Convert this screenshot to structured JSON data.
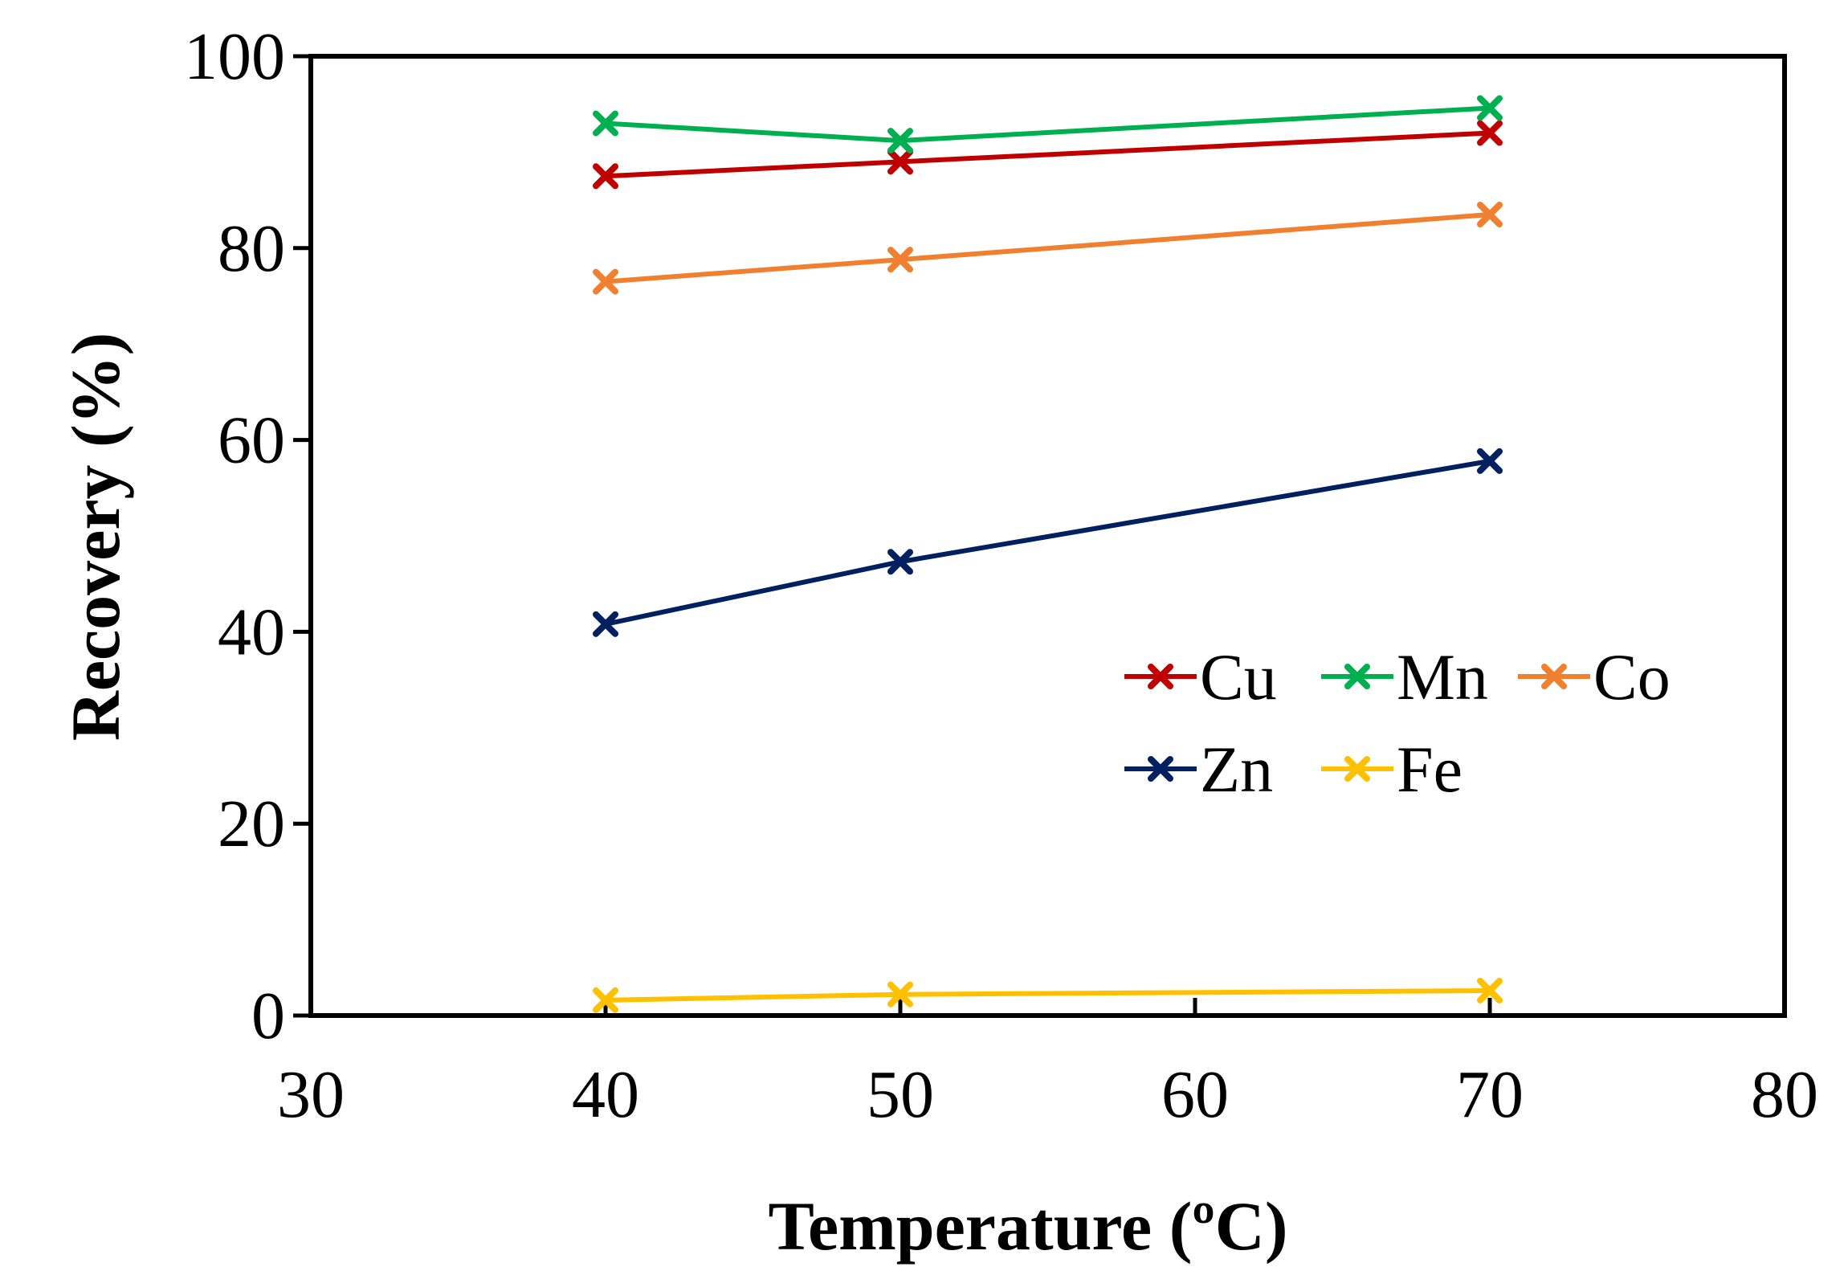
{
  "chart_data": {
    "type": "line",
    "title": "",
    "xlabel": "Temperature (ºC)",
    "ylabel": "Recovery (%)",
    "xlim": [
      30,
      80
    ],
    "ylim": [
      0,
      100
    ],
    "xticks": [
      30,
      40,
      50,
      60,
      70,
      80
    ],
    "yticks": [
      0,
      20,
      40,
      60,
      80,
      100
    ],
    "x_tick_labels": [
      "30",
      "40",
      "50",
      "60",
      "70",
      "80"
    ],
    "y_tick_labels": [
      "0",
      "20",
      "40",
      "60",
      "80",
      "100"
    ],
    "grid": false,
    "legend_position": "center-right",
    "x": [
      40,
      50,
      70
    ],
    "series": [
      {
        "name": "Cu",
        "color": "#c00000",
        "values": [
          87.5,
          89,
          92
        ]
      },
      {
        "name": "Mn",
        "color": "#00b050",
        "values": [
          93,
          91.2,
          94.6
        ]
      },
      {
        "name": "Co",
        "color": "#f08030",
        "values": [
          76.5,
          78.8,
          83.5
        ]
      },
      {
        "name": "Zn",
        "color": "#002060",
        "values": [
          40.8,
          47.3,
          57.8
        ]
      },
      {
        "name": "Fe",
        "color": "#ffc000",
        "values": [
          1.6,
          2.2,
          2.6
        ]
      }
    ]
  }
}
